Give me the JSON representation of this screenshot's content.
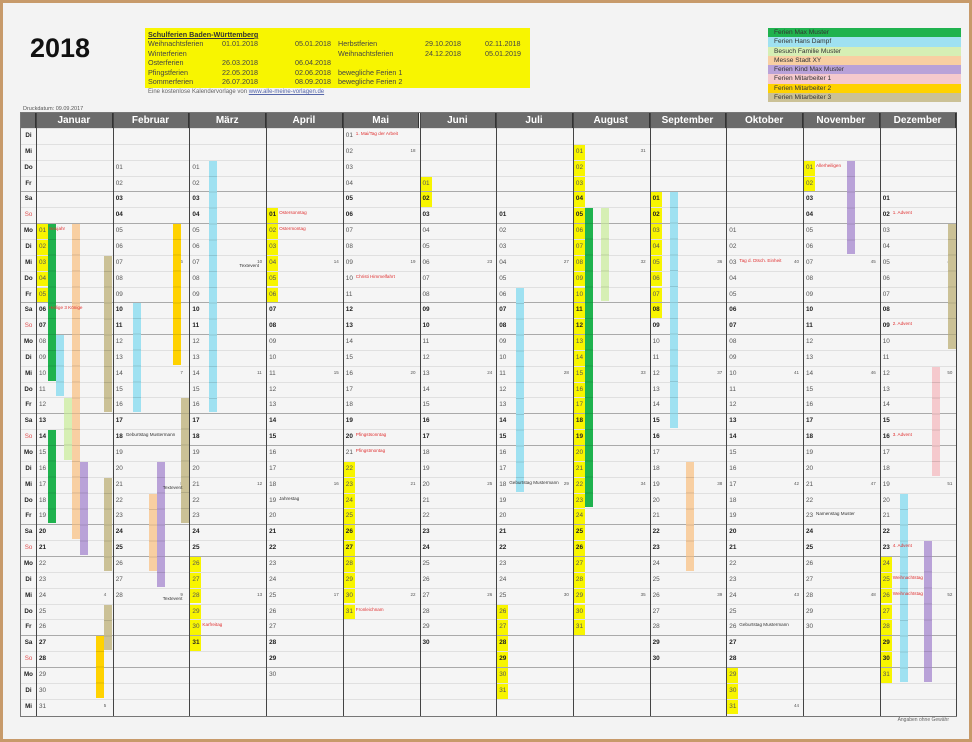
{
  "year": "2018",
  "print_date": "Druckdatum:   09.09.2017",
  "school_holidays": {
    "title": "Schulferien Baden-Württemberg",
    "left": [
      [
        "Weihnachtsferien",
        "01.01.2018",
        "05.01.2018"
      ],
      [
        "Winterferien",
        "",
        ""
      ],
      [
        "Osterferien",
        "26.03.2018",
        "06.04.2018"
      ],
      [
        "Pfingstferien",
        "22.05.2018",
        "02.06.2018"
      ],
      [
        "Sommerferien",
        "26.07.2018",
        "08.09.2018"
      ]
    ],
    "right": [
      [
        "Herbstferien",
        "29.10.2018",
        "02.11.2018"
      ],
      [
        "Weihnachtsferien",
        "24.12.2018",
        "05.01.2019"
      ],
      [
        "",
        "",
        ""
      ],
      [
        "bewegliche Ferien 1",
        "",
        ""
      ],
      [
        "bewegliche Ferien 2",
        "",
        ""
      ]
    ]
  },
  "credit": {
    "text": "Eine kostenlose Kalendervorlage von",
    "link": "www.alle-meine-vorlagen.de"
  },
  "legend": [
    {
      "label": "Ferien Max Muster",
      "color": "#1fb24e"
    },
    {
      "label": "Ferien Hans Dampf",
      "color": "#9fe1f1"
    },
    {
      "label": "Besuch Familie Muster",
      "color": "#d6efb4"
    },
    {
      "label": "Messe Stadt XY",
      "color": "#f8cfa2"
    },
    {
      "label": "Ferien Kind Max Muster",
      "color": "#b9a2d8"
    },
    {
      "label": "Ferien Mitarbeiter 1",
      "color": "#f5c9cd"
    },
    {
      "label": "Ferien Mitarbeiter 2",
      "color": "#ffd200"
    },
    {
      "label": "Ferien Mitarbeiter 3",
      "color": "#cbc196"
    }
  ],
  "months": [
    "Januar",
    "Februar",
    "März",
    "April",
    "Mai",
    "Juni",
    "Juli",
    "August",
    "September",
    "Oktober",
    "November",
    "Dezember"
  ],
  "weekdays": [
    "Di",
    "Mi",
    "Do",
    "Fr",
    "Sa",
    "So",
    "Mo",
    "Di",
    "Mi",
    "Do",
    "Fr",
    "Sa",
    "So",
    "Mo",
    "Di",
    "Mi",
    "Do",
    "Fr",
    "Sa",
    "So",
    "Mo",
    "Di",
    "Mi",
    "Do",
    "Fr",
    "Sa",
    "So",
    "Mo",
    "Di",
    "Mi",
    "Do",
    "Fr",
    "Sa",
    "So",
    "Mo",
    "Di",
    "Mi"
  ],
  "holiday_color": "#f8f500",
  "holiday_ranges": [
    [
      1,
      1,
      5
    ],
    [
      3,
      26,
      31
    ],
    [
      4,
      1,
      6
    ],
    [
      5,
      22,
      31
    ],
    [
      6,
      1,
      2
    ],
    [
      7,
      26,
      31
    ],
    [
      8,
      1,
      31
    ],
    [
      9,
      1,
      8
    ],
    [
      10,
      29,
      31
    ],
    [
      11,
      1,
      2
    ],
    [
      12,
      24,
      31
    ]
  ],
  "bars": [
    [
      1,
      1,
      10,
      0
    ],
    [
      1,
      14,
      19,
      0
    ],
    [
      1,
      8,
      11,
      1
    ],
    [
      1,
      12,
      15,
      2
    ],
    [
      1,
      1,
      20,
      3
    ],
    [
      1,
      16,
      21,
      4
    ],
    [
      1,
      3,
      12,
      7
    ],
    [
      1,
      17,
      22,
      7
    ],
    [
      1,
      25,
      27,
      7
    ],
    [
      1,
      27,
      30,
      6
    ],
    [
      2,
      10,
      16,
      1
    ],
    [
      2,
      5,
      13,
      6
    ],
    [
      2,
      22,
      26,
      3
    ],
    [
      2,
      20,
      27,
      4
    ],
    [
      2,
      16,
      23,
      7
    ],
    [
      3,
      1,
      16,
      1
    ],
    [
      7,
      6,
      18,
      1
    ],
    [
      8,
      5,
      23,
      0
    ],
    [
      8,
      5,
      10,
      2
    ],
    [
      9,
      1,
      15,
      1
    ],
    [
      9,
      18,
      24,
      3
    ],
    [
      11,
      1,
      6,
      4
    ],
    [
      12,
      3,
      10,
      7
    ],
    [
      12,
      12,
      18,
      5
    ],
    [
      12,
      20,
      31,
      1
    ],
    [
      12,
      23,
      31,
      4
    ]
  ],
  "events": [
    {
      "m": 1,
      "d": 1,
      "text": "Neujahr",
      "color": "red"
    },
    {
      "m": 1,
      "d": 6,
      "text": "Heilige 3 Könige",
      "color": "red"
    },
    {
      "m": 2,
      "d": 18,
      "text": "Geburtstag Mustermann",
      "color": "black"
    },
    {
      "m": 2,
      "d": 21,
      "text": "Textevent",
      "color": "black",
      "right": true
    },
    {
      "m": 2,
      "d": 28,
      "text": "Textevent",
      "color": "black",
      "right": true
    },
    {
      "m": 3,
      "d": 7,
      "text": "Textevent",
      "color": "black",
      "right": true
    },
    {
      "m": 3,
      "d": 30,
      "text": "Karfreitag",
      "color": "red"
    },
    {
      "m": 4,
      "d": 1,
      "text": "Ostersonntag",
      "color": "red"
    },
    {
      "m": 4,
      "d": 2,
      "text": "Ostermontag",
      "color": "red"
    },
    {
      "m": 4,
      "d": 19,
      "text": "Jahrestag",
      "color": "black"
    },
    {
      "m": 5,
      "d": 1,
      "text": "1. Mai/Tag der Arbeit",
      "color": "red"
    },
    {
      "m": 5,
      "d": 10,
      "text": "Christi Himmelfahrt",
      "color": "red"
    },
    {
      "m": 5,
      "d": 20,
      "text": "Pfingstsonntag",
      "color": "red"
    },
    {
      "m": 5,
      "d": 21,
      "text": "Pfingstmontag",
      "color": "red"
    },
    {
      "m": 5,
      "d": 31,
      "text": "Fronleichnam",
      "color": "red"
    },
    {
      "m": 7,
      "d": 18,
      "text": "Geburtstag Mustermann",
      "color": "black"
    },
    {
      "m": 10,
      "d": 3,
      "text": "Tag d. Dtsch. Einheit",
      "color": "red"
    },
    {
      "m": 10,
      "d": 26,
      "text": "Geburtstag Mustermann",
      "color": "black"
    },
    {
      "m": 11,
      "d": 1,
      "text": "Allerheiligen",
      "color": "red"
    },
    {
      "m": 11,
      "d": 23,
      "text": "Namenstag Muster",
      "color": "black"
    },
    {
      "m": 12,
      "d": 2,
      "text": "1. Advent",
      "color": "red"
    },
    {
      "m": 12,
      "d": 9,
      "text": "2. Advent",
      "color": "red"
    },
    {
      "m": 12,
      "d": 16,
      "text": "3. Advent",
      "color": "red"
    },
    {
      "m": 12,
      "d": 23,
      "text": "4. Advent",
      "color": "red"
    },
    {
      "m": 12,
      "d": 25,
      "text": "Weihnachtstag",
      "color": "red"
    },
    {
      "m": 12,
      "d": 26,
      "text": "Weihnachtstag",
      "color": "red"
    }
  ],
  "week_numbers": [
    [
      1,
      2,
      3,
      4,
      5
    ],
    [
      6,
      7,
      8,
      9
    ],
    [
      10,
      11,
      12,
      13
    ],
    [
      14,
      15,
      16,
      17
    ],
    [
      18,
      19,
      20,
      21,
      22
    ],
    [
      23,
      24,
      25,
      26
    ],
    [
      27,
      28,
      29,
      30
    ],
    [
      31,
      32,
      33,
      34,
      35
    ],
    [
      36,
      37,
      38,
      39
    ],
    [
      40,
      41,
      42,
      43,
      44
    ],
    [
      45,
      46,
      47,
      48
    ],
    [
      49,
      50,
      51,
      52
    ]
  ],
  "disclaimer": "Angaben ohne Gewähr"
}
